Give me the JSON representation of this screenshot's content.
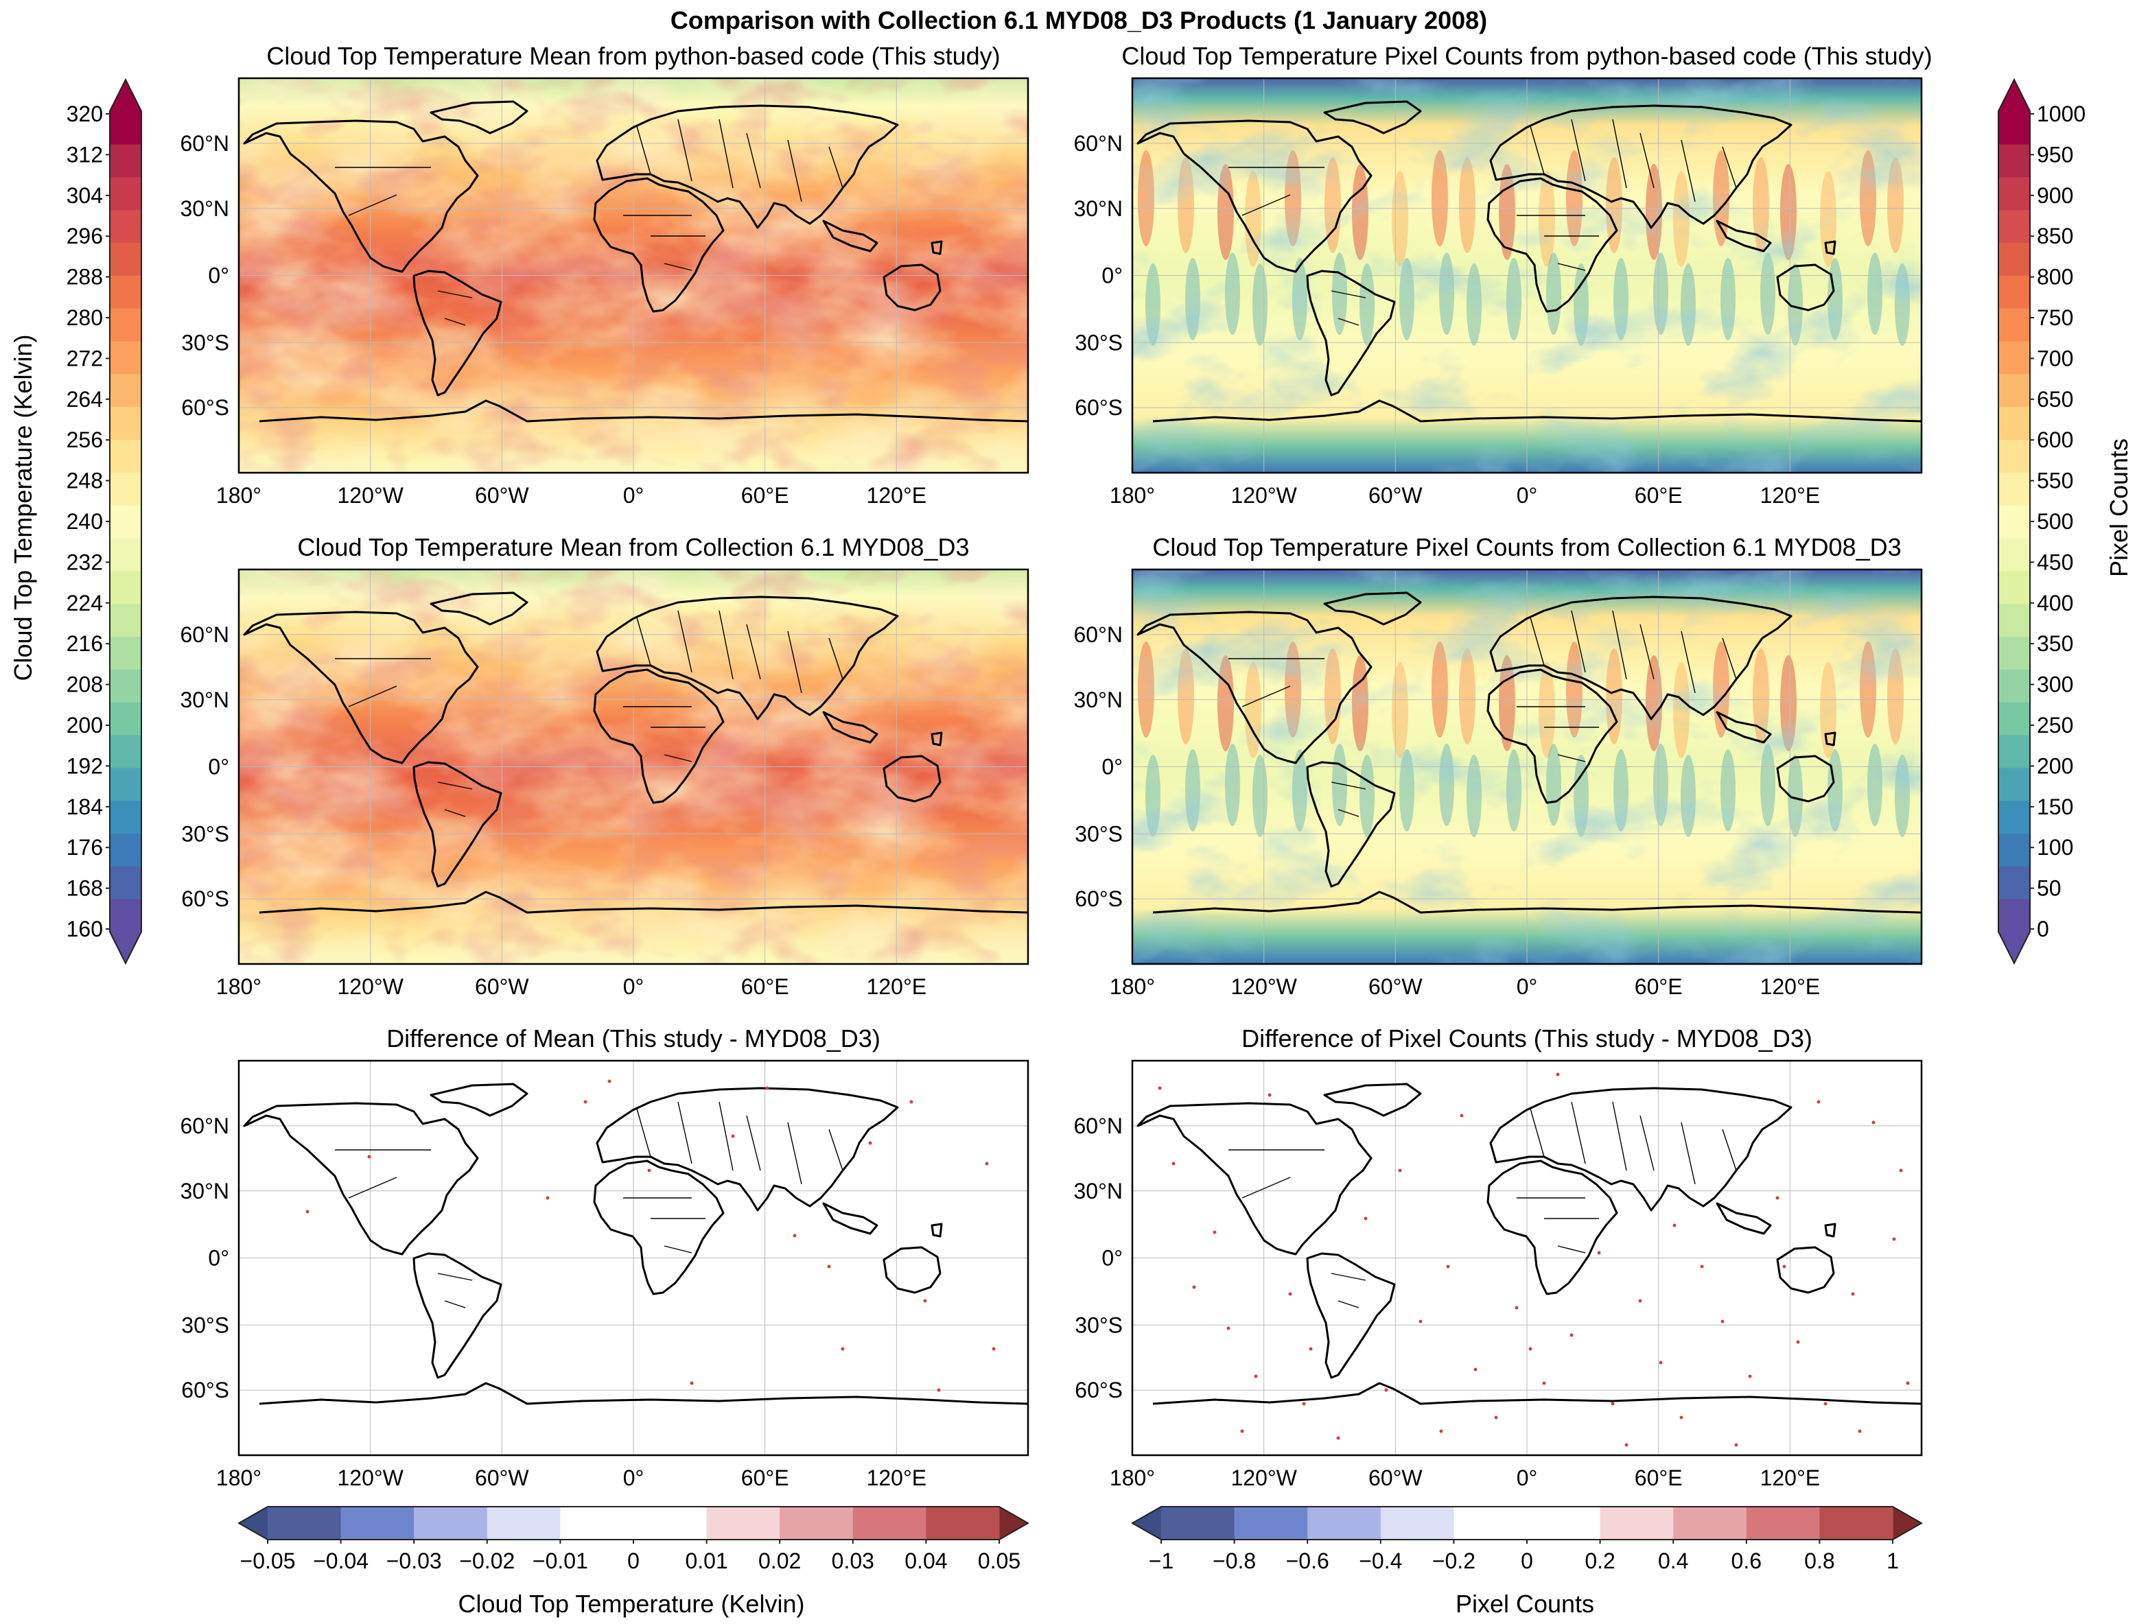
{
  "figure_title": "Comparison with Collection 6.1 MYD08_D3 Products (1 January 2008)",
  "chart_data": [
    {
      "type": "heatmap",
      "id": "mean_this",
      "title": "Cloud Top Temperature Mean from python-based code (This study)",
      "colorbar": "temp"
    },
    {
      "type": "heatmap",
      "id": "counts_this",
      "title": "Cloud Top Temperature Pixel Counts from python-based code (This study)",
      "colorbar": "counts"
    },
    {
      "type": "heatmap",
      "id": "mean_myd",
      "title": "Cloud Top Temperature Mean from Collection 6.1 MYD08_D3",
      "colorbar": "temp"
    },
    {
      "type": "heatmap",
      "id": "counts_myd",
      "title": "Cloud Top Temperature Pixel Counts from Collection 6.1 MYD08_D3",
      "colorbar": "counts"
    },
    {
      "type": "heatmap",
      "id": "diff_mean",
      "title": "Difference of Mean (This study - MYD08_D3)",
      "colorbar": "diff_mean"
    },
    {
      "type": "heatmap",
      "id": "diff_counts",
      "title": "Difference of Pixel Counts (This study - MYD08_D3)",
      "colorbar": "diff_counts"
    }
  ],
  "axes": {
    "lon_ticks": [
      "180°",
      "120°W",
      "60°W",
      "0°",
      "60°E",
      "120°E"
    ],
    "lat_ticks": [
      "60°N",
      "30°N",
      "0°",
      "30°S",
      "60°S"
    ]
  },
  "colorbars": {
    "temp": {
      "label": "Cloud Top Temperature (Kelvin)",
      "range": [
        160,
        320
      ],
      "ticks": [
        "320",
        "312",
        "304",
        "296",
        "288",
        "280",
        "272",
        "264",
        "256",
        "248",
        "240",
        "232",
        "224",
        "216",
        "208",
        "200",
        "192",
        "184",
        "176",
        "168",
        "160"
      ],
      "colors": [
        "#5e4fa2",
        "#4d65ad",
        "#3d7ab8",
        "#3a8fbb",
        "#4aa4b3",
        "#5fb8aa",
        "#79c8a4",
        "#94d4a3",
        "#addfa3",
        "#c7e9a0",
        "#def2a1",
        "#eff8b2",
        "#fdfbbc",
        "#fef0a7",
        "#fee291",
        "#fed07e",
        "#fdb96b",
        "#fca15e",
        "#f88c52",
        "#f07549",
        "#e25f47",
        "#d64d4b",
        "#c73c4c",
        "#b2294a",
        "#9e0142"
      ]
    },
    "counts": {
      "label": "Pixel Counts",
      "range": [
        0,
        1000
      ],
      "ticks": [
        "1000",
        "950",
        "900",
        "850",
        "800",
        "750",
        "700",
        "650",
        "600",
        "550",
        "500",
        "450",
        "400",
        "350",
        "300",
        "250",
        "200",
        "150",
        "100",
        "50",
        "0"
      ],
      "colors": [
        "#5e4fa2",
        "#4d65ad",
        "#3d7ab8",
        "#3a8fbb",
        "#4aa4b3",
        "#5fb8aa",
        "#79c8a4",
        "#94d4a3",
        "#addfa3",
        "#c7e9a0",
        "#def2a1",
        "#eff8b2",
        "#fdfbbc",
        "#fef0a7",
        "#fee291",
        "#fed07e",
        "#fdb96b",
        "#fca15e",
        "#f88c52",
        "#f07549",
        "#e25f47",
        "#d64d4b",
        "#c73c4c",
        "#b2294a",
        "#9e0142"
      ]
    },
    "diff_mean": {
      "label": "Cloud Top Temperature (Kelvin)",
      "ticks": [
        "−0.05",
        "−0.04",
        "−0.03",
        "−0.02",
        "−0.01",
        "0",
        "0.01",
        "0.02",
        "0.03",
        "0.04",
        "0.05"
      ],
      "colors": [
        "#4e5f9c",
        "#6f86cf",
        "#a9b3e6",
        "#dcdff5",
        "#ffffff",
        "#ffffff",
        "#f6d5d8",
        "#e6a3a8",
        "#d7777c",
        "#b84f51"
      ],
      "under": "#3d4e86",
      "over": "#7c2a2b"
    },
    "diff_counts": {
      "label": "Pixel Counts",
      "ticks": [
        "−1",
        "−0.8",
        "−0.6",
        "−0.4",
        "−0.2",
        "0",
        "0.2",
        "0.4",
        "0.6",
        "0.8",
        "1"
      ],
      "colors": [
        "#4e5f9c",
        "#6f86cf",
        "#a9b3e6",
        "#dcdff5",
        "#ffffff",
        "#ffffff",
        "#f6d5d8",
        "#e6a3a8",
        "#d7777c",
        "#b84f51"
      ],
      "under": "#3d4e86",
      "over": "#7c2a2b"
    }
  }
}
